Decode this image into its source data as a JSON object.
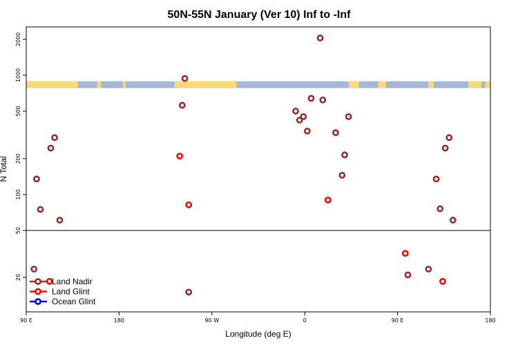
{
  "chart_data": {
    "type": "scatter",
    "title": "50N-55N January (Ver 10)   Inf to -Inf",
    "xlabel": "Longitude (deg E)",
    "ylabel": "N Total",
    "xlim": [
      90,
      450
    ],
    "ylim_log": [
      10,
      2500
    ],
    "y_split": 50,
    "x_ticks": [
      {
        "value": 90,
        "label": "90 E"
      },
      {
        "value": 162,
        "label": "180"
      },
      {
        "value": 234,
        "label": "90 W"
      },
      {
        "value": 306,
        "label": "0"
      },
      {
        "value": 378,
        "label": "90 E"
      },
      {
        "value": 450,
        "label": "180"
      }
    ],
    "y_ticks_upper": [
      {
        "value": 50,
        "label": "50"
      },
      {
        "value": 100,
        "label": "100"
      },
      {
        "value": 200,
        "label": "200"
      },
      {
        "value": 500,
        "label": "500"
      },
      {
        "value": 1000,
        "label": "1000"
      },
      {
        "value": 2000,
        "label": "2000"
      }
    ],
    "y_ticks_lower": [
      {
        "value": 20,
        "label": "20"
      }
    ],
    "surface_band": {
      "y_range": [
        780,
        890
      ],
      "land_color": "#fed977",
      "ocean_color": "#a4b8d8",
      "land_segments": [
        [
          90,
          130
        ],
        [
          145,
          148
        ],
        [
          165,
          167
        ],
        [
          205,
          253
        ],
        [
          340,
          348
        ],
        [
          363,
          369
        ],
        [
          402,
          406
        ],
        [
          433,
          443
        ],
        [
          446,
          450
        ]
      ]
    },
    "legend": {
      "position": "bottom-left",
      "entries": [
        {
          "name": "Land Nadir",
          "color": "#992a2a"
        },
        {
          "name": "Land Glint",
          "color": "#ff0000"
        },
        {
          "name": "Ocean Glint",
          "color": "#0000ff"
        }
      ]
    },
    "series": [
      {
        "name": "Land Nadir",
        "color": "#992a2a",
        "points": [
          {
            "lon": 98,
            "n": 135
          },
          {
            "lon": 101,
            "n": 75
          },
          {
            "lon": 109,
            "n": 245
          },
          {
            "lon": 112,
            "n": 300
          },
          {
            "lon": 116,
            "n": 61
          },
          {
            "lon": 211,
            "n": 560
          },
          {
            "lon": 213,
            "n": 940
          },
          {
            "lon": 299,
            "n": 500
          },
          {
            "lon": 302,
            "n": 420
          },
          {
            "lon": 308,
            "n": 340
          },
          {
            "lon": 311,
            "n": 640
          },
          {
            "lon": 305,
            "n": 450
          },
          {
            "lon": 318,
            "n": 2050
          },
          {
            "lon": 320,
            "n": 620
          },
          {
            "lon": 330,
            "n": 330
          },
          {
            "lon": 335,
            "n": 145
          },
          {
            "lon": 337,
            "n": 215
          },
          {
            "lon": 340,
            "n": 450
          },
          {
            "lon": 386,
            "n": 21
          },
          {
            "lon": 402,
            "n": 23.5
          },
          {
            "lon": 408,
            "n": 135
          },
          {
            "lon": 411,
            "n": 76
          },
          {
            "lon": 415,
            "n": 245
          },
          {
            "lon": 418,
            "n": 300
          },
          {
            "lon": 421,
            "n": 61
          },
          {
            "lon": 216,
            "n": 15
          },
          {
            "lon": 96,
            "n": 23.5
          }
        ]
      },
      {
        "name": "Land Glint",
        "color": "#ff0000",
        "points": [
          {
            "lon": 209,
            "n": 210
          },
          {
            "lon": 216,
            "n": 82
          },
          {
            "lon": 324,
            "n": 90
          },
          {
            "lon": 384,
            "n": 32
          },
          {
            "lon": 413,
            "n": 18.5
          },
          {
            "lon": 108,
            "n": 18.5
          }
        ]
      },
      {
        "name": "Ocean Glint",
        "color": "#0000ff",
        "points": []
      }
    ]
  }
}
